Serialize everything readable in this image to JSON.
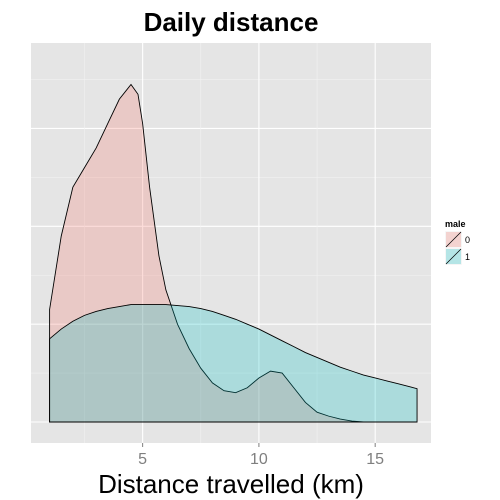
{
  "chart_data": {
    "type": "area",
    "title": "Daily distance",
    "xlabel": "Distance travelled (km)",
    "ylabel": "",
    "xlim": [
      0.2,
      17.4
    ],
    "ylim": [
      0,
      0.37
    ],
    "xticks": [
      5,
      10,
      15
    ],
    "grid": true,
    "legend_title": "male",
    "legend_position": "right",
    "series": [
      {
        "name": "0",
        "color": "#f8766d",
        "x": [
          1.0,
          1.0,
          1.5,
          2.0,
          2.5,
          3.0,
          3.5,
          4.0,
          4.5,
          4.8,
          5.0,
          5.3,
          5.7,
          6.0,
          6.5,
          7.0,
          7.5,
          8.0,
          8.5,
          9.0,
          9.5,
          10.0,
          10.5,
          11.0,
          11.5,
          12.0,
          12.5,
          13.0,
          13.5,
          14.0,
          14.5
        ],
        "y": [
          0.0,
          0.115,
          0.19,
          0.24,
          0.26,
          0.28,
          0.305,
          0.33,
          0.345,
          0.335,
          0.305,
          0.24,
          0.17,
          0.135,
          0.1,
          0.075,
          0.055,
          0.04,
          0.032,
          0.03,
          0.035,
          0.045,
          0.052,
          0.05,
          0.035,
          0.02,
          0.01,
          0.006,
          0.003,
          0.001,
          0.0
        ]
      },
      {
        "name": "1",
        "color": "#00bfc4",
        "x": [
          1.0,
          1.0,
          1.5,
          2.0,
          2.5,
          3.0,
          3.5,
          4.0,
          4.5,
          5.0,
          5.5,
          6.0,
          6.5,
          7.0,
          7.5,
          8.0,
          8.5,
          9.0,
          9.5,
          10.0,
          10.5,
          11.0,
          11.5,
          12.0,
          12.5,
          13.0,
          13.5,
          14.0,
          14.5,
          15.0,
          15.5,
          16.0,
          16.5,
          16.8,
          16.8
        ],
        "y": [
          0.0,
          0.085,
          0.095,
          0.103,
          0.109,
          0.113,
          0.116,
          0.118,
          0.12,
          0.12,
          0.12,
          0.12,
          0.119,
          0.118,
          0.116,
          0.113,
          0.109,
          0.105,
          0.1,
          0.095,
          0.089,
          0.083,
          0.077,
          0.071,
          0.066,
          0.061,
          0.056,
          0.052,
          0.048,
          0.045,
          0.042,
          0.039,
          0.036,
          0.034,
          0.0
        ]
      }
    ]
  }
}
